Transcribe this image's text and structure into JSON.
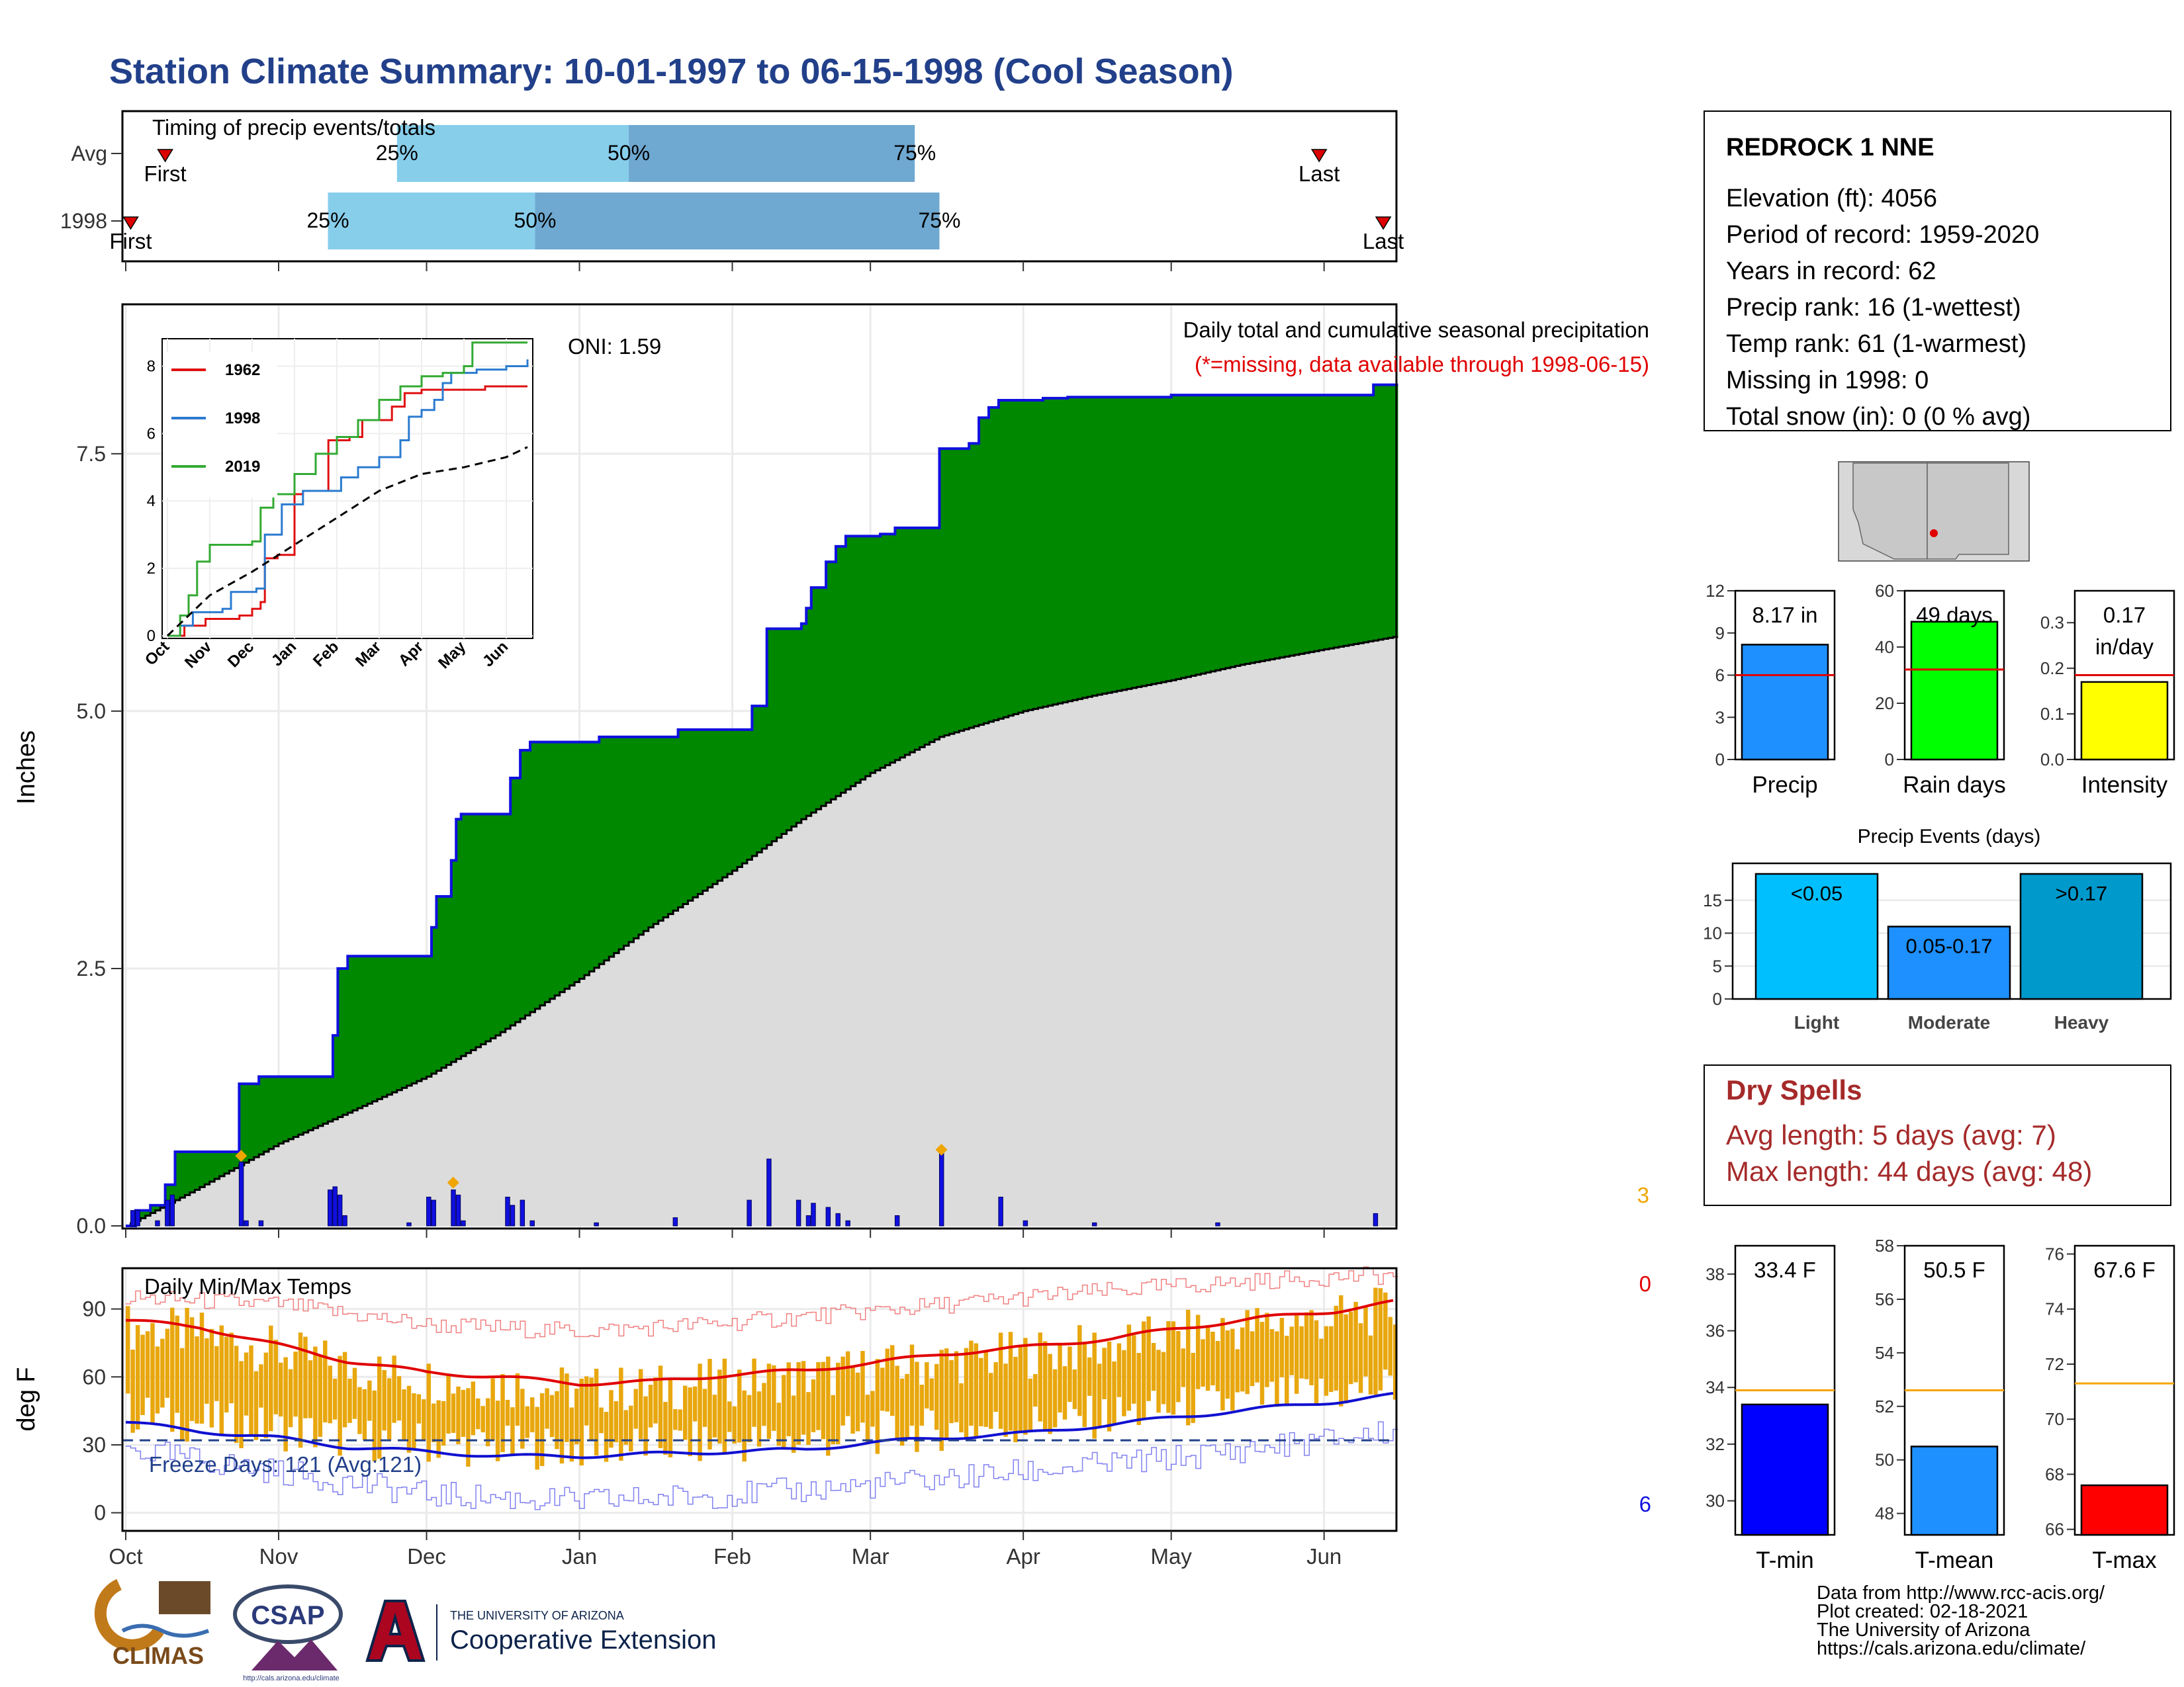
{
  "title": "Station Climate Summary: 10-01-1997 to 06-15-1998 (Cool Season)",
  "timing_panel": {
    "heading": "Timing of precip events/totals",
    "rows": [
      {
        "label": "Avg",
        "first_label": "First",
        "last_label": "Last",
        "first_date": "1997-10-09",
        "last_date": "1998-05-31",
        "p25_date": "1997-11-25",
        "p50_date": "1998-01-11",
        "p75_date": "1998-03-10",
        "p25_label": "25%",
        "p50_label": "50%",
        "p75_label": "75%"
      },
      {
        "label": "1998",
        "first_label": "First",
        "last_label": "Last",
        "first_date": "1997-10-02",
        "last_date": "1998-06-13",
        "p25_date": "1997-11-11",
        "p50_date": "1997-12-23",
        "p75_date": "1998-03-15",
        "p25_label": "25%",
        "p50_label": "50%",
        "p75_label": "75%"
      }
    ]
  },
  "station": {
    "name": "REDROCK 1 NNE",
    "lines": [
      "Elevation (ft): 4056",
      "Period of record: 1959-2020",
      "Years in record: 62",
      "Precip rank: 16 (1-wettest)",
      "Temp rank: 61 (1-warmest)",
      "Missing in 1998: 0",
      "Total snow (in): 0 (0 % avg)"
    ]
  },
  "main_chart": {
    "ylabel": "Inches",
    "oni_label": "ONI: 1.59",
    "desc_label": "Daily total and cumulative seasonal precipitation",
    "missing_label": "(*=missing, data available through 1998-06-15)",
    "count_label": "3",
    "month_labels": [
      "Oct",
      "Nov",
      "Dec",
      "Jan",
      "Feb",
      "Mar",
      "Apr",
      "May",
      "Jun"
    ]
  },
  "inset": {
    "month_labels": [
      "Oct",
      "Nov",
      "Dec",
      "Jan",
      "Feb",
      "Mar",
      "Apr",
      "May",
      "Jun"
    ],
    "legend": [
      "1962",
      "1998",
      "2019"
    ]
  },
  "temp_chart": {
    "ylabel": "deg F",
    "heading": "Daily Min/Max Temps",
    "freeze_label": "Freeze Days: 121 (Avg:121)",
    "top_count": "0",
    "bottom_count": "6"
  },
  "precip_bars": {
    "labels": [
      "Precip",
      "Rain days",
      "Intensity"
    ],
    "values_text": [
      "8.17 in",
      "49 days",
      "0.17 in/day"
    ]
  },
  "events": {
    "title": "Precip Events (days)",
    "categories": [
      "Light",
      "Moderate",
      "Heavy"
    ],
    "bar_labels": [
      "<0.05",
      "0.05-0.17",
      ">0.17"
    ]
  },
  "dry_spells": {
    "title": "Dry Spells",
    "lines": [
      "Avg length: 5 days (avg: 7)",
      "Max length: 44 days (avg: 48)"
    ]
  },
  "temp_bars": {
    "labels": [
      "T-min",
      "T-mean",
      "T-max"
    ],
    "values_text": [
      "33.4 F",
      "50.5 F",
      "67.6 F"
    ]
  },
  "credits": [
    "Data from http://www.rcc-acis.org/",
    "Plot created: 02-18-2021",
    "The University of Arizona",
    "https://cals.arizona.edu/climate/"
  ],
  "logos": {
    "climas": "CLIMAS",
    "csap": "CSAP",
    "csap_url": "http://cals.arizona.edu/climate",
    "ua_line1": "THE UNIVERSITY OF ARIZONA",
    "ua_line2": "Cooperative Extension"
  },
  "colors": {
    "title": "#22408a",
    "green": "#008800",
    "blue_line": "#1010e0",
    "grey_fill": "#dcdcdc",
    "light_blue": "#87ceeb",
    "mid_blue": "#6fa8d0",
    "red": "#dd1111",
    "orange": "#e8a70e",
    "dry_red": "#a52a2a"
  },
  "chart_data": [
    {
      "type": "area",
      "title": "Daily total and cumulative seasonal precipitation",
      "ylabel": "Inches",
      "ylim": [
        0,
        8.9
      ],
      "yticks": [
        0.0,
        2.5,
        5.0,
        7.5
      ],
      "x_range": [
        "1997-10-01",
        "1998-06-15"
      ],
      "series": [
        {
          "name": "1998 cumulative",
          "points": [
            [
              "1997-10-01",
              0
            ],
            [
              "1997-10-03",
              0.15
            ],
            [
              "1997-10-06",
              0.2
            ],
            [
              "1997-10-09",
              0.4
            ],
            [
              "1997-10-11",
              0.72
            ],
            [
              "1997-10-23",
              0.72
            ],
            [
              "1997-10-24",
              1.38
            ],
            [
              "1997-10-28",
              1.45
            ],
            [
              "1997-11-11",
              1.45
            ],
            [
              "1997-11-12",
              1.85
            ],
            [
              "1997-11-13",
              2.5
            ],
            [
              "1997-11-15",
              2.62
            ],
            [
              "1997-11-29",
              2.62
            ],
            [
              "1997-12-01",
              2.62
            ],
            [
              "1997-12-02",
              2.9
            ],
            [
              "1997-12-03",
              3.2
            ],
            [
              "1997-12-06",
              3.55
            ],
            [
              "1997-12-07",
              3.95
            ],
            [
              "1997-12-08",
              4.0
            ],
            [
              "1997-12-17",
              4.0
            ],
            [
              "1997-12-18",
              4.35
            ],
            [
              "1997-12-20",
              4.62
            ],
            [
              "1997-12-22",
              4.7
            ],
            [
              "1998-01-03",
              4.7
            ],
            [
              "1998-01-05",
              4.75
            ],
            [
              "1998-01-20",
              4.75
            ],
            [
              "1998-01-21",
              4.82
            ],
            [
              "1998-02-04",
              4.82
            ],
            [
              "1998-02-05",
              5.05
            ],
            [
              "1998-02-07",
              5.05
            ],
            [
              "1998-02-08",
              5.8
            ],
            [
              "1998-02-15",
              5.85
            ],
            [
              "1998-02-16",
              6.0
            ],
            [
              "1998-02-17",
              6.2
            ],
            [
              "1998-02-20",
              6.45
            ],
            [
              "1998-02-22",
              6.6
            ],
            [
              "1998-02-24",
              6.7
            ],
            [
              "1998-03-02",
              6.7
            ],
            [
              "1998-03-03",
              6.72
            ],
            [
              "1998-03-05",
              6.72
            ],
            [
              "1998-03-06",
              6.78
            ],
            [
              "1998-03-14",
              6.78
            ],
            [
              "1998-03-15",
              7.55
            ],
            [
              "1998-03-21",
              7.6
            ],
            [
              "1998-03-23",
              7.85
            ],
            [
              "1998-03-25",
              7.95
            ],
            [
              "1998-03-27",
              8.02
            ],
            [
              "1998-04-05",
              8.04
            ],
            [
              "1998-04-10",
              8.05
            ],
            [
              "1998-05-01",
              8.07
            ],
            [
              "1998-06-10",
              8.07
            ],
            [
              "1998-06-11",
              8.17
            ],
            [
              "1998-06-15",
              8.17
            ]
          ]
        },
        {
          "name": "Average cumulative",
          "points": [
            [
              "1997-10-01",
              0
            ],
            [
              "1997-10-15",
              0.35
            ],
            [
              "1997-11-01",
              0.8
            ],
            [
              "1997-11-15",
              1.1
            ],
            [
              "1997-12-01",
              1.45
            ],
            [
              "1997-12-15",
              1.85
            ],
            [
              "1998-01-01",
              2.4
            ],
            [
              "1998-01-15",
              2.9
            ],
            [
              "1998-02-01",
              3.45
            ],
            [
              "1998-02-15",
              3.95
            ],
            [
              "1998-03-01",
              4.4
            ],
            [
              "1998-03-15",
              4.75
            ],
            [
              "1998-04-01",
              5.0
            ],
            [
              "1998-04-15",
              5.15
            ],
            [
              "1998-05-01",
              5.3
            ],
            [
              "1998-05-15",
              5.45
            ],
            [
              "1998-06-01",
              5.6
            ],
            [
              "1998-06-15",
              5.72
            ]
          ]
        }
      ],
      "daily_precip": [
        [
          "1997-10-02",
          0.15
        ],
        [
          "1997-10-03",
          0.15
        ],
        [
          "1997-10-07",
          0.05
        ],
        [
          "1997-10-09",
          0.25
        ],
        [
          "1997-10-10",
          0.3
        ],
        [
          "1997-10-24",
          0.62
        ],
        [
          "1997-10-25",
          0.05
        ],
        [
          "1997-10-28",
          0.05
        ],
        [
          "1997-11-11",
          0.35
        ],
        [
          "1997-11-12",
          0.38
        ],
        [
          "1997-11-13",
          0.3
        ],
        [
          "1997-11-14",
          0.1
        ],
        [
          "1997-11-27",
          0.03
        ],
        [
          "1997-12-01",
          0.28
        ],
        [
          "1997-12-02",
          0.25
        ],
        [
          "1997-12-06",
          0.35
        ],
        [
          "1997-12-07",
          0.3
        ],
        [
          "1997-12-08",
          0.05
        ],
        [
          "1997-12-17",
          0.28
        ],
        [
          "1997-12-18",
          0.2
        ],
        [
          "1997-12-20",
          0.25
        ],
        [
          "1997-12-22",
          0.05
        ],
        [
          "1998-01-04",
          0.03
        ],
        [
          "1998-01-20",
          0.08
        ],
        [
          "1998-02-04",
          0.25
        ],
        [
          "1998-02-08",
          0.65
        ],
        [
          "1998-02-14",
          0.25
        ],
        [
          "1998-02-16",
          0.1
        ],
        [
          "1998-02-17",
          0.22
        ],
        [
          "1998-02-20",
          0.18
        ],
        [
          "1998-02-22",
          0.12
        ],
        [
          "1998-02-24",
          0.05
        ],
        [
          "1998-03-06",
          0.1
        ],
        [
          "1998-03-15",
          0.72
        ],
        [
          "1998-03-27",
          0.28
        ],
        [
          "1998-04-01",
          0.05
        ],
        [
          "1998-04-15",
          0.03
        ],
        [
          "1998-05-10",
          0.03
        ],
        [
          "1998-06-11",
          0.12
        ]
      ],
      "snow_markers": [
        [
          "1997-10-24",
          0.68
        ],
        [
          "1997-12-06",
          0.42
        ],
        [
          "1998-03-15",
          0.74
        ]
      ]
    },
    {
      "type": "line",
      "title": "Inset cumulative precipitation",
      "ylim": [
        0,
        8.5
      ],
      "yticks": [
        0,
        2,
        4,
        6,
        8
      ],
      "series": [
        {
          "name": "1962",
          "x_month": [
            0,
            0.4,
            0.6,
            0.9,
            1.0,
            1.7,
            2.0,
            2.2,
            2.3,
            2.6,
            3.0,
            3.2,
            3.6,
            3.8,
            4.3,
            4.6,
            5.0,
            5.3,
            5.6,
            6.0,
            6.5,
            7.2,
            7.5,
            8.5
          ],
          "values": [
            0,
            0.3,
            0.3,
            0.5,
            0.5,
            0.6,
            0.8,
            1.0,
            2.3,
            2.4,
            4.2,
            4.3,
            4.3,
            5.8,
            5.9,
            6.4,
            6.4,
            6.8,
            7.2,
            7.3,
            7.3,
            7.3,
            7.4,
            7.4
          ]
        },
        {
          "name": "1998",
          "x_month": [
            0,
            0.3,
            0.6,
            1.3,
            1.5,
            2.1,
            2.3,
            2.7,
            3.2,
            4.1,
            4.5,
            5.0,
            5.5,
            5.7,
            6.0,
            6.3,
            6.5,
            6.7,
            7.3,
            8.0,
            8.5
          ],
          "values": [
            0,
            0.3,
            0.7,
            0.8,
            1.3,
            1.4,
            3.0,
            3.9,
            4.3,
            4.7,
            5.0,
            5.3,
            5.8,
            6.5,
            6.7,
            7.0,
            7.5,
            7.8,
            7.9,
            8.0,
            8.2
          ]
        },
        {
          "name": "2019",
          "x_month": [
            0,
            0.3,
            0.5,
            0.7,
            1.0,
            1.5,
            2.0,
            2.2,
            2.5,
            3.0,
            3.5,
            4.0,
            4.5,
            5.0,
            5.5,
            6.0,
            6.5,
            7.0,
            7.2,
            8.5
          ],
          "values": [
            0,
            0.6,
            1.2,
            2.2,
            2.7,
            2.7,
            2.8,
            3.8,
            4.2,
            4.8,
            5.4,
            5.9,
            6.4,
            7.0,
            7.4,
            7.7,
            7.8,
            8.0,
            8.7,
            8.7
          ]
        },
        {
          "name": "Average",
          "x_month": [
            0,
            1,
            2,
            3,
            4,
            5,
            6,
            7,
            8,
            8.5
          ],
          "values": [
            0,
            1.2,
            1.9,
            2.7,
            3.5,
            4.3,
            4.8,
            5.0,
            5.3,
            5.6
          ]
        }
      ]
    },
    {
      "type": "bar",
      "title": "Daily Min/Max Temps",
      "ylabel": "deg F",
      "ylim": [
        -8,
        108
      ],
      "yticks": [
        0,
        30,
        60,
        90
      ],
      "freeze_line": 32,
      "avg_max_anchors": [
        [
          0,
          85
        ],
        [
          15,
          82
        ],
        [
          31,
          74
        ],
        [
          45,
          67
        ],
        [
          61,
          62
        ],
        [
          76,
          60
        ],
        [
          92,
          57
        ],
        [
          107,
          58
        ],
        [
          123,
          61
        ],
        [
          138,
          63
        ],
        [
          151,
          66
        ],
        [
          165,
          70
        ],
        [
          182,
          73
        ],
        [
          200,
          77
        ],
        [
          212,
          81
        ],
        [
          230,
          86
        ],
        [
          245,
          89
        ],
        [
          257,
          93
        ]
      ],
      "avg_min_anchors": [
        [
          0,
          40
        ],
        [
          15,
          36
        ],
        [
          31,
          33
        ],
        [
          45,
          29
        ],
        [
          61,
          27
        ],
        [
          76,
          25
        ],
        [
          92,
          25
        ],
        [
          107,
          26
        ],
        [
          123,
          27
        ],
        [
          138,
          28
        ],
        [
          151,
          31
        ],
        [
          165,
          33
        ],
        [
          182,
          35
        ],
        [
          200,
          39
        ],
        [
          212,
          42
        ],
        [
          230,
          46
        ],
        [
          245,
          49
        ],
        [
          257,
          52
        ]
      ],
      "record_max_anchors": [
        [
          0,
          95
        ],
        [
          31,
          92
        ],
        [
          61,
          83
        ],
        [
          92,
          80
        ],
        [
          123,
          84
        ],
        [
          151,
          89
        ],
        [
          182,
          95
        ],
        [
          212,
          100
        ],
        [
          243,
          104
        ],
        [
          257,
          105
        ]
      ],
      "record_min_anchors": [
        [
          0,
          28
        ],
        [
          31,
          18
        ],
        [
          61,
          8
        ],
        [
          92,
          5
        ],
        [
          123,
          8
        ],
        [
          151,
          12
        ],
        [
          182,
          18
        ],
        [
          212,
          24
        ],
        [
          243,
          32
        ],
        [
          257,
          36
        ]
      ]
    },
    {
      "type": "bar",
      "title": "Precip / Rain days / Intensity",
      "categories": [
        "Precip",
        "Rain days",
        "Intensity"
      ],
      "values": [
        8.17,
        49,
        0.17
      ],
      "averages": [
        6.0,
        32,
        0.185
      ],
      "ylims": [
        [
          0,
          12
        ],
        [
          0,
          60
        ],
        [
          0,
          0.37
        ]
      ]
    },
    {
      "type": "bar",
      "title": "Precip Events (days)",
      "categories": [
        "Light",
        "Moderate",
        "Heavy"
      ],
      "values": [
        19,
        11,
        19
      ],
      "ylim": [
        0,
        20
      ]
    },
    {
      "type": "bar",
      "title": "Temperature summary",
      "categories": [
        "T-min",
        "T-mean",
        "T-max"
      ],
      "values": [
        33.4,
        50.5,
        67.6
      ],
      "averages": [
        33.9,
        52.6,
        71.3
      ],
      "ylims": [
        [
          28.8,
          39.0
        ],
        [
          47.2,
          58.0
        ],
        [
          65.8,
          76.3
        ]
      ]
    }
  ]
}
